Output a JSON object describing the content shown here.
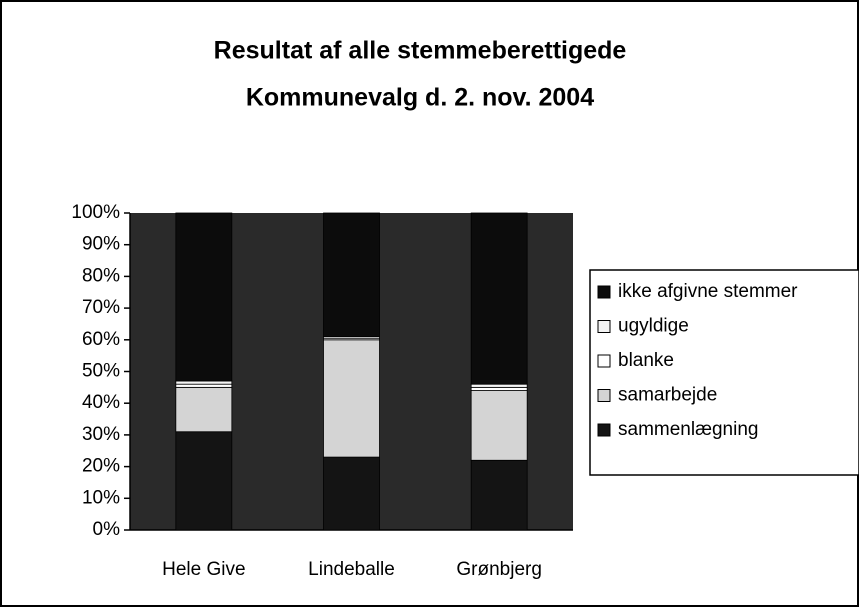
{
  "chart_data": {
    "type": "stacked_bar_percent",
    "title": "Resultat af alle stemmeberettigede",
    "subtitle": "Kommunevalg d. 2. nov. 2004",
    "categories": [
      "Hele Give",
      "Lindeballe",
      "Grønbjerg"
    ],
    "series": [
      {
        "name": "sammenlægning",
        "color": "#141414",
        "values": [
          31,
          23,
          22
        ]
      },
      {
        "name": "samarbejde",
        "color": "#d4d4d4",
        "values": [
          14,
          37,
          22
        ]
      },
      {
        "name": "blanke",
        "color": "#ffffff",
        "values": [
          1,
          0.5,
          1
        ]
      },
      {
        "name": "ugyldige",
        "color": "#f4f4f4",
        "values": [
          1,
          0.5,
          1
        ]
      },
      {
        "name": "ikke afgivne stemmer",
        "color": "#0c0c0c",
        "values": [
          53,
          39,
          54
        ]
      }
    ],
    "ylim": [
      0,
      100
    ],
    "yticks": [
      {
        "value": 0,
        "label": "0%"
      },
      {
        "value": 10,
        "label": "10%"
      },
      {
        "value": 20,
        "label": "20%"
      },
      {
        "value": 30,
        "label": "30%"
      },
      {
        "value": 40,
        "label": "40%"
      },
      {
        "value": 50,
        "label": "50%"
      },
      {
        "value": 60,
        "label": "60%"
      },
      {
        "value": 70,
        "label": "70%"
      },
      {
        "value": 80,
        "label": "80%"
      },
      {
        "value": 90,
        "label": "90%"
      },
      {
        "value": 100,
        "label": "100%"
      }
    ],
    "legend": "right"
  }
}
